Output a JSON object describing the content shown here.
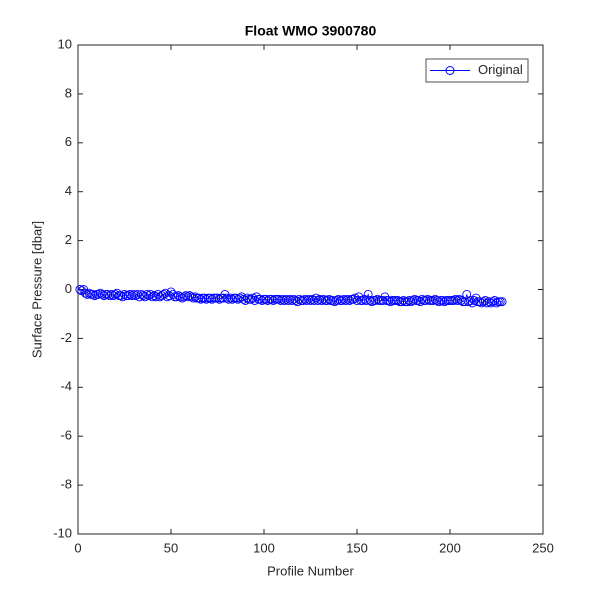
{
  "chart_data": {
    "type": "line",
    "title": "Float WMO 3900780",
    "x_label": "Profile Number",
    "y_label": "Surface Pressure [dbar]",
    "xlim": [
      0,
      250
    ],
    "xticks": [
      0,
      50,
      100,
      150,
      200,
      250
    ],
    "ylim": [
      -10,
      10
    ],
    "yticks": [
      -10,
      -8,
      -6,
      -4,
      -2,
      0,
      2,
      4,
      6,
      8,
      10
    ],
    "legend": "northeast",
    "box": true,
    "x": [
      1,
      2,
      3,
      4,
      5,
      6,
      7,
      8,
      9,
      10,
      11,
      12,
      13,
      14,
      15,
      16,
      17,
      18,
      19,
      20,
      21,
      22,
      23,
      24,
      25,
      26,
      27,
      28,
      29,
      30,
      31,
      32,
      33,
      34,
      35,
      36,
      37,
      38,
      39,
      40,
      41,
      42,
      43,
      44,
      45,
      46,
      47,
      48,
      49,
      50,
      51,
      52,
      53,
      54,
      55,
      56,
      57,
      58,
      59,
      60,
      61,
      62,
      63,
      64,
      65,
      66,
      67,
      68,
      69,
      70,
      71,
      72,
      73,
      74,
      75,
      76,
      77,
      78,
      79,
      80,
      81,
      82,
      83,
      84,
      85,
      86,
      87,
      88,
      89,
      90,
      91,
      92,
      93,
      94,
      95,
      96,
      97,
      98,
      99,
      100,
      101,
      102,
      103,
      104,
      105,
      106,
      107,
      108,
      109,
      110,
      111,
      112,
      113,
      114,
      115,
      116,
      117,
      118,
      119,
      120,
      121,
      122,
      123,
      124,
      125,
      126,
      127,
      128,
      129,
      130,
      131,
      132,
      133,
      134,
      135,
      136,
      137,
      138,
      139,
      140,
      141,
      142,
      143,
      144,
      145,
      146,
      147,
      148,
      149,
      150,
      151,
      152,
      153,
      154,
      155,
      156,
      157,
      158,
      159,
      160,
      161,
      162,
      163,
      164,
      165,
      166,
      167,
      168,
      169,
      170,
      171,
      172,
      173,
      174,
      175,
      176,
      177,
      178,
      179,
      180,
      181,
      182,
      183,
      184,
      185,
      186,
      187,
      188,
      189,
      190,
      191,
      192,
      193,
      194,
      195,
      196,
      197,
      198,
      199,
      200,
      201,
      202,
      203,
      204,
      205,
      206,
      207,
      208,
      209,
      210,
      211,
      212,
      213,
      214,
      215,
      216,
      217,
      218,
      219,
      220,
      221,
      222,
      223,
      224,
      225,
      226,
      227,
      228
    ],
    "series": [
      {
        "name": "Original",
        "color": "#0000ff",
        "marker": "circle",
        "values": [
          0.0,
          -0.05,
          0.0,
          -0.15,
          -0.2,
          -0.15,
          -0.2,
          -0.2,
          -0.25,
          -0.2,
          -0.2,
          -0.15,
          -0.2,
          -0.25,
          -0.2,
          -0.2,
          -0.25,
          -0.2,
          -0.25,
          -0.2,
          -0.15,
          -0.25,
          -0.25,
          -0.3,
          -0.2,
          -0.25,
          -0.25,
          -0.2,
          -0.25,
          -0.2,
          -0.25,
          -0.2,
          -0.3,
          -0.2,
          -0.25,
          -0.3,
          -0.2,
          -0.25,
          -0.2,
          -0.3,
          -0.25,
          -0.3,
          -0.2,
          -0.3,
          -0.25,
          -0.2,
          -0.15,
          -0.3,
          -0.25,
          -0.1,
          -0.2,
          -0.3,
          -0.3,
          -0.25,
          -0.3,
          -0.35,
          -0.3,
          -0.25,
          -0.3,
          -0.25,
          -0.3,
          -0.35,
          -0.3,
          -0.35,
          -0.35,
          -0.4,
          -0.35,
          -0.35,
          -0.4,
          -0.35,
          -0.35,
          -0.4,
          -0.35,
          -0.35,
          -0.35,
          -0.4,
          -0.35,
          -0.35,
          -0.2,
          -0.35,
          -0.4,
          -0.35,
          -0.4,
          -0.35,
          -0.35,
          -0.4,
          -0.35,
          -0.3,
          -0.4,
          -0.45,
          -0.35,
          -0.4,
          -0.4,
          -0.35,
          -0.45,
          -0.3,
          -0.4,
          -0.4,
          -0.45,
          -0.4,
          -0.4,
          -0.45,
          -0.4,
          -0.4,
          -0.45,
          -0.4,
          -0.4,
          -0.4,
          -0.45,
          -0.4,
          -0.45,
          -0.4,
          -0.45,
          -0.4,
          -0.45,
          -0.4,
          -0.45,
          -0.5,
          -0.4,
          -0.45,
          -0.45,
          -0.4,
          -0.45,
          -0.4,
          -0.45,
          -0.4,
          -0.45,
          -0.35,
          -0.45,
          -0.4,
          -0.45,
          -0.4,
          -0.45,
          -0.45,
          -0.4,
          -0.45,
          -0.45,
          -0.5,
          -0.45,
          -0.4,
          -0.45,
          -0.45,
          -0.4,
          -0.45,
          -0.4,
          -0.45,
          -0.4,
          -0.4,
          -0.35,
          -0.45,
          -0.3,
          -0.45,
          -0.45,
          -0.4,
          -0.45,
          -0.2,
          -0.45,
          -0.5,
          -0.45,
          -0.45,
          -0.4,
          -0.45,
          -0.45,
          -0.45,
          -0.3,
          -0.45,
          -0.45,
          -0.5,
          -0.45,
          -0.45,
          -0.45,
          -0.45,
          -0.5,
          -0.5,
          -0.45,
          -0.5,
          -0.5,
          -0.45,
          -0.5,
          -0.45,
          -0.4,
          -0.45,
          -0.45,
          -0.5,
          -0.4,
          -0.45,
          -0.45,
          -0.4,
          -0.45,
          -0.45,
          -0.45,
          -0.4,
          -0.45,
          -0.5,
          -0.45,
          -0.45,
          -0.5,
          -0.45,
          -0.45,
          -0.45,
          -0.45,
          -0.45,
          -0.4,
          -0.45,
          -0.4,
          -0.45,
          -0.5,
          -0.5,
          -0.2,
          -0.5,
          -0.45,
          -0.55,
          -0.45,
          -0.35,
          -0.5,
          -0.5,
          -0.55,
          -0.5,
          -0.45,
          -0.55,
          -0.5,
          -0.55,
          -0.5,
          -0.45,
          -0.55,
          -0.5,
          -0.5,
          -0.5
        ]
      }
    ]
  }
}
